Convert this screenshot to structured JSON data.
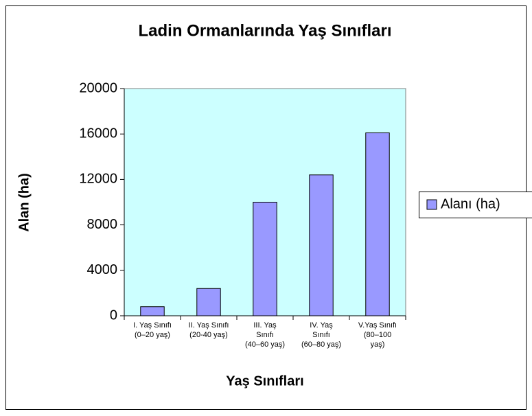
{
  "chart_data": {
    "type": "bar",
    "title": "Ladin Ormanlarında Yaş Sınıfları",
    "x_label": "Yaş Sınıfları",
    "y_label": "Alan (ha)",
    "categories": [
      "I. Yaş Sınıfı\n(0–20 yaş)",
      "II. Yaş Sınıfı\n(20-40 yaş)",
      "III. Yaş\nSınıfı\n(40–60 yaş)",
      "IV. Yaş\nSınıfı\n(60–80 yaş)",
      "V.Yaş Sınıfı\n(80–100\nyaş)"
    ],
    "series": [
      {
        "name": "Alanı (ha)",
        "color": "#9999ff",
        "values": [
          800,
          2400,
          10000,
          12400,
          16100
        ]
      }
    ],
    "ylim": [
      0,
      20000
    ],
    "yticks": [
      0,
      4000,
      8000,
      12000,
      16000,
      20000
    ],
    "grid": false,
    "legend": "right",
    "plot_background": "#ccffff"
  }
}
